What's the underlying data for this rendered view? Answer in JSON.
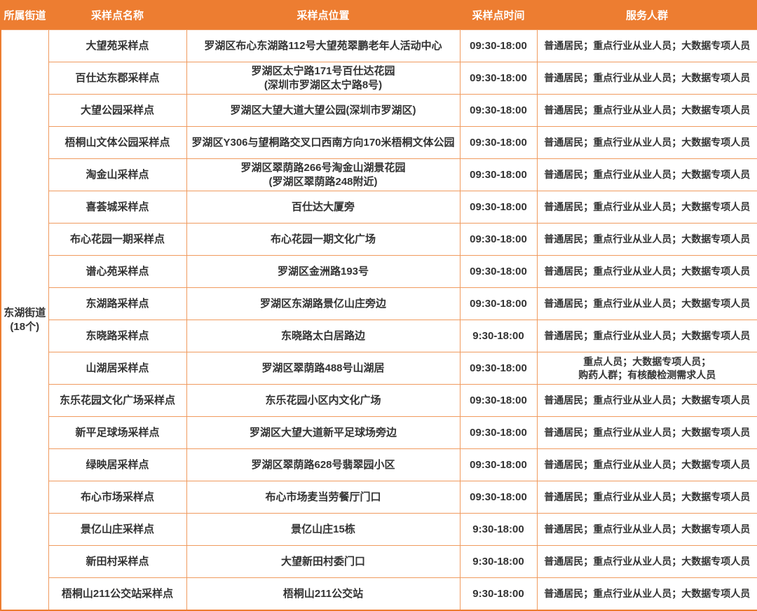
{
  "colors": {
    "header_bg": "#ED7D31",
    "header_text": "#FFFFFF",
    "border_outer": "#ED7D31",
    "border_inner": "#F09B5F",
    "body_text": "#333333",
    "page_bg": "#FFFFFF"
  },
  "table": {
    "headers": [
      "所属街道",
      "采样点名称",
      "采样点位置",
      "采样点时间",
      "服务人群"
    ],
    "street_cell": "东湖街道\n(18个)",
    "rows": [
      {
        "name": "大望苑采样点",
        "location": "罗湖区布心东湖路112号大望苑翠鹏老年人活动中心",
        "time": "09:30-18:00",
        "service": "普通居民；重点行业从业人员；大数据专项人员"
      },
      {
        "name": "百仕达东郡采样点",
        "location": "罗湖区太宁路171号百仕达花园\n(深圳市罗湖区太宁路8号)",
        "time": "09:30-18:00",
        "service": "普通居民；重点行业从业人员；大数据专项人员"
      },
      {
        "name": "大望公园采样点",
        "location": "罗湖区大望大道大望公园(深圳市罗湖区)",
        "time": "09:30-18:00",
        "service": "普通居民；重点行业从业人员；大数据专项人员"
      },
      {
        "name": "梧桐山文体公园采样点",
        "location": "罗湖区Y306与望桐路交叉口西南方向170米梧桐文体公园",
        "time": "09:30-18:00",
        "service": "普通居民；重点行业从业人员；大数据专项人员"
      },
      {
        "name": "淘金山采样点",
        "location": "罗湖区翠荫路266号淘金山湖景花园\n(罗湖区翠荫路248附近)",
        "time": "09:30-18:00",
        "service": "普通居民；重点行业从业人员；大数据专项人员"
      },
      {
        "name": "喜荟城采样点",
        "location": "百仕达大厦旁",
        "time": "09:30-18:00",
        "service": "普通居民；重点行业从业人员；大数据专项人员"
      },
      {
        "name": "布心花园一期采样点",
        "location": "布心花园一期文化广场",
        "time": "09:30-18:00",
        "service": "普通居民；重点行业从业人员；大数据专项人员"
      },
      {
        "name": "谱心苑采样点",
        "location": "罗湖区金洲路193号",
        "time": "09:30-18:00",
        "service": "普通居民；重点行业从业人员；大数据专项人员"
      },
      {
        "name": "东湖路采样点",
        "location": "罗湖区东湖路景亿山庄旁边",
        "time": "09:30-18:00",
        "service": "普通居民；重点行业从业人员；大数据专项人员"
      },
      {
        "name": "东晓路采样点",
        "location": "东晓路太白居路边",
        "time": "9:30-18:00",
        "service": "普通居民；重点行业从业人员；大数据专项人员"
      },
      {
        "name": "山湖居采样点",
        "location": "罗湖区翠荫路488号山湖居",
        "time": "09:30-18:00",
        "service": "重点人员；大数据专项人员；\n购药人群；有核酸检测需求人员"
      },
      {
        "name": "东乐花园文化广场采样点",
        "location": "东乐花园小区内文化广场",
        "time": "09:30-18:00",
        "service": "普通居民；重点行业从业人员；大数据专项人员"
      },
      {
        "name": "新平足球场采样点",
        "location": "罗湖区大望大道新平足球场旁边",
        "time": "09:30-18:00",
        "service": "普通居民；重点行业从业人员；大数据专项人员"
      },
      {
        "name": "绿映居采样点",
        "location": "罗湖区翠荫路628号翡翠园小区",
        "time": "09:30-18:00",
        "service": "普通居民；重点行业从业人员；大数据专项人员"
      },
      {
        "name": "布心市场采样点",
        "location": "布心市场麦当劳餐厅门口",
        "time": "09:30-18:00",
        "service": "普通居民；重点行业从业人员；大数据专项人员"
      },
      {
        "name": "景亿山庄采样点",
        "location": "景亿山庄15栋",
        "time": "9:30-18:00",
        "service": "普通居民；重点行业从业人员；大数据专项人员"
      },
      {
        "name": "新田村采样点",
        "location": "大望新田村委门口",
        "time": "9:30-18:00",
        "service": "普通居民；重点行业从业人员；大数据专项人员"
      },
      {
        "name": "梧桐山211公交站采样点",
        "location": "梧桐山211公交站",
        "time": "9:30-18:00",
        "service": "普通居民；重点行业从业人员；大数据专项人员"
      }
    ]
  }
}
